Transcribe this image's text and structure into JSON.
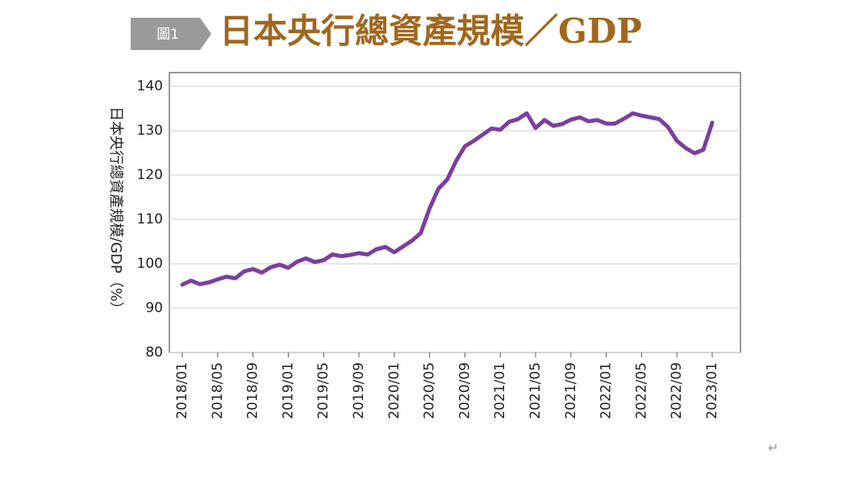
{
  "tag": "圖1",
  "return_mark": "↵",
  "chart_data": {
    "type": "line",
    "title": "日本央行總資產規模／GDP",
    "y_label": "日本央行總資產規模/GDP（%）",
    "categories": [
      "2018/01",
      null,
      null,
      null,
      "2018/05",
      null,
      null,
      null,
      "2018/09",
      null,
      null,
      null,
      "2019/01",
      null,
      null,
      null,
      "2019/05",
      null,
      null,
      null,
      "2019/09",
      null,
      null,
      null,
      "2020/01",
      null,
      null,
      null,
      "2020/05",
      null,
      null,
      null,
      "2020/09",
      null,
      null,
      null,
      "2021/01",
      null,
      null,
      null,
      "2021/05",
      null,
      null,
      null,
      "2021/09",
      null,
      null,
      null,
      "2022/01",
      null,
      null,
      null,
      "2022/05",
      null,
      null,
      null,
      "2022/09",
      null,
      null,
      null,
      "2023/01"
    ],
    "series": [
      {
        "color": "#7b3f9e",
        "values": [
          95.3,
          96.2,
          95.4,
          95.8,
          96.5,
          97.1,
          96.7,
          98.3,
          98.8,
          98.0,
          99.2,
          99.8,
          99.1,
          100.5,
          101.2,
          100.4,
          100.8,
          102.1,
          101.7,
          102.0,
          102.4,
          102.1,
          103.3,
          103.8,
          102.6,
          103.9,
          105.2,
          106.9,
          112.5,
          116.9,
          119.0,
          123.2,
          126.5,
          127.7,
          129.1,
          130.5,
          130.2,
          132.0,
          132.6,
          133.9,
          130.6,
          132.4,
          131.1,
          131.5,
          132.5,
          133.0,
          132.1,
          132.4,
          131.6,
          131.6,
          132.7,
          133.9,
          133.4,
          133.0,
          132.6,
          130.8,
          127.7,
          126.1,
          124.9,
          125.7,
          131.8
        ]
      }
    ],
    "ylim": [
      80,
      140
    ],
    "yticks": [
      80,
      90,
      100,
      110,
      120,
      130,
      140
    ],
    "grid": true
  }
}
